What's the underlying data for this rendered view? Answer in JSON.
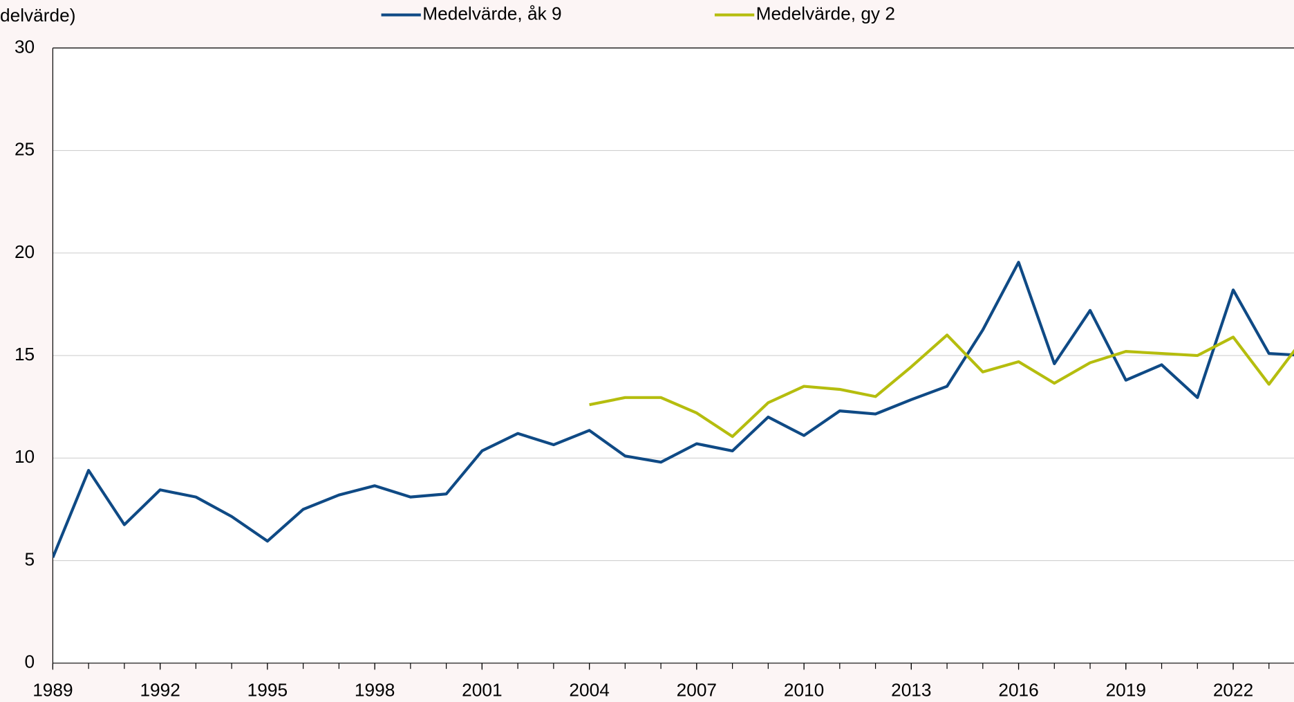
{
  "chart_data": {
    "type": "line",
    "y_label": "delvärde)",
    "x": [
      1989,
      1990,
      1991,
      1992,
      1993,
      1994,
      1995,
      1996,
      1997,
      1998,
      1999,
      2000,
      2001,
      2002,
      2003,
      2004,
      2005,
      2006,
      2007,
      2008,
      2009,
      2010,
      2011,
      2012,
      2013,
      2014,
      2015,
      2016,
      2017,
      2018,
      2019,
      2020,
      2021,
      2022,
      2023,
      2024
    ],
    "series": [
      {
        "name": "Medelvärde, åk 9",
        "color": "#0f4a85",
        "values": [
          5.15,
          9.4,
          6.75,
          8.45,
          8.1,
          7.15,
          5.95,
          7.5,
          8.2,
          8.65,
          8.1,
          8.25,
          10.35,
          11.2,
          10.65,
          11.35,
          10.1,
          9.8,
          10.7,
          10.35,
          12.0,
          11.1,
          12.3,
          12.15,
          12.85,
          13.5,
          16.25,
          19.55,
          14.6,
          17.2,
          13.8,
          14.55,
          12.95,
          18.2,
          15.1,
          15.0
        ]
      },
      {
        "name": "Medelvärde, gy 2",
        "color": "#b5bd0e",
        "values": [
          null,
          null,
          null,
          null,
          null,
          null,
          null,
          null,
          null,
          null,
          null,
          null,
          null,
          null,
          null,
          12.6,
          12.95,
          12.95,
          12.2,
          11.05,
          12.7,
          13.5,
          13.35,
          13.0,
          14.45,
          16.0,
          14.2,
          14.7,
          13.65,
          14.65,
          15.2,
          15.1,
          15.0,
          15.9,
          13.6,
          15.9
        ]
      }
    ],
    "xlim": [
      1989,
      2023.7
    ],
    "xticks": [
      1989,
      1992,
      1995,
      1998,
      2001,
      2004,
      2007,
      2010,
      2013,
      2016,
      2019,
      2022
    ],
    "ylim": [
      0,
      30
    ],
    "yticks": [
      0,
      5,
      10,
      15,
      20,
      25,
      30
    ],
    "grid": true
  }
}
